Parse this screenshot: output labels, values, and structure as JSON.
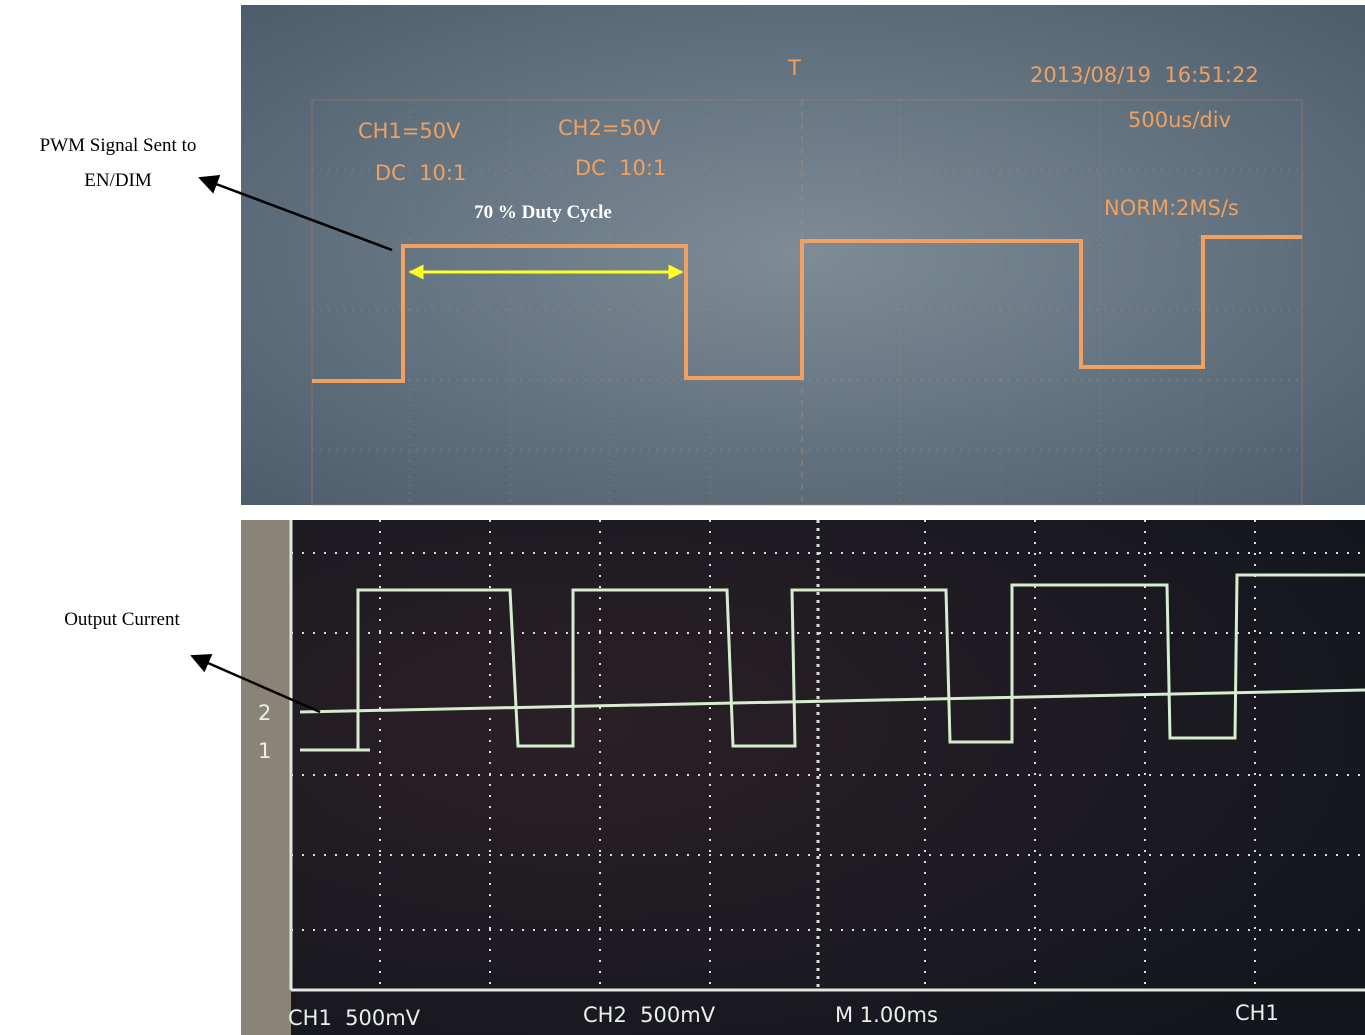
{
  "annotations": {
    "pwm_label": [
      "PWM Signal Sent to",
      "EN/DIM"
    ],
    "duty_label": "70 % Duty Cycle",
    "output_label": "Output Current"
  },
  "top_scope": {
    "datetime": "2013/08/19  16:51:22",
    "timebase": "500us/div",
    "ch1_scale": "CH1=50V",
    "ch2_scale": "CH2=50V",
    "ch1_coupling": "DC  10:1",
    "ch2_coupling": "DC  10:1",
    "sample": "NORM:2MS/s",
    "trigger": "T"
  },
  "bottom_scope": {
    "ch2_marker": "2",
    "ch1_marker": "1",
    "ch1_scale": "CH1  500mV",
    "ch2_scale": "CH2  500mV",
    "timebase": "M 1.00ms",
    "trigger_source": "CH1"
  }
}
